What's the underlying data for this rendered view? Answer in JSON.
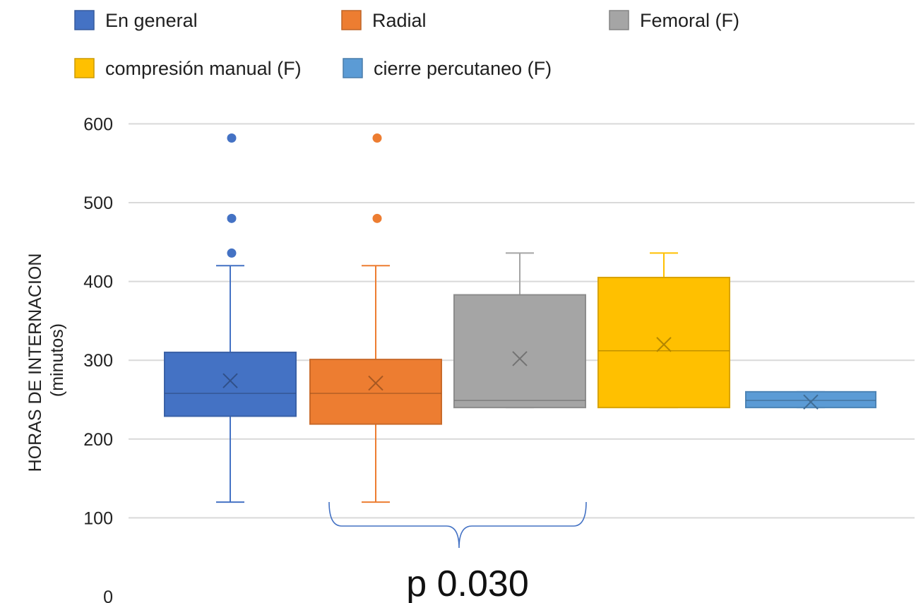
{
  "chart_data": {
    "type": "boxplot",
    "ylabel_line1": "HORAS DE INTERNACION",
    "ylabel_line2": "(minutos)",
    "ylim": [
      0,
      600
    ],
    "yticks": [
      "0",
      "100",
      "200",
      "300",
      "400",
      "500",
      "600"
    ],
    "grid": true,
    "legend_position": "top",
    "annotation": "p 0.030",
    "series": [
      {
        "name": "En general",
        "color": "#4472C4",
        "whisker_low": 120,
        "q1": 229,
        "median": 258,
        "q3": 310,
        "whisker_high": 420,
        "mean": 274,
        "outliers": [
          436,
          480,
          582
        ]
      },
      {
        "name": "Radial",
        "color": "#ED7D31",
        "whisker_low": 120,
        "q1": 219,
        "median": 258,
        "q3": 301,
        "whisker_high": 420,
        "mean": 271,
        "outliers": [
          480,
          582
        ]
      },
      {
        "name": "Femoral (F)",
        "color": "#A5A5A5",
        "whisker_low": 240,
        "q1": 240,
        "median": 249,
        "q3": 383,
        "whisker_high": 436,
        "mean": 302,
        "outliers": []
      },
      {
        "name": "compresión manual (F)",
        "color": "#FFC000",
        "whisker_low": 240,
        "q1": 240,
        "median": 312,
        "q3": 405,
        "whisker_high": 436,
        "mean": 320,
        "outliers": []
      },
      {
        "name": "cierre percutaneo (F)",
        "color": "#5B9BD5",
        "whisker_low": 240,
        "q1": 240,
        "median": 249,
        "q3": 260,
        "whisker_high": 260,
        "mean": 247,
        "outliers": []
      }
    ]
  }
}
